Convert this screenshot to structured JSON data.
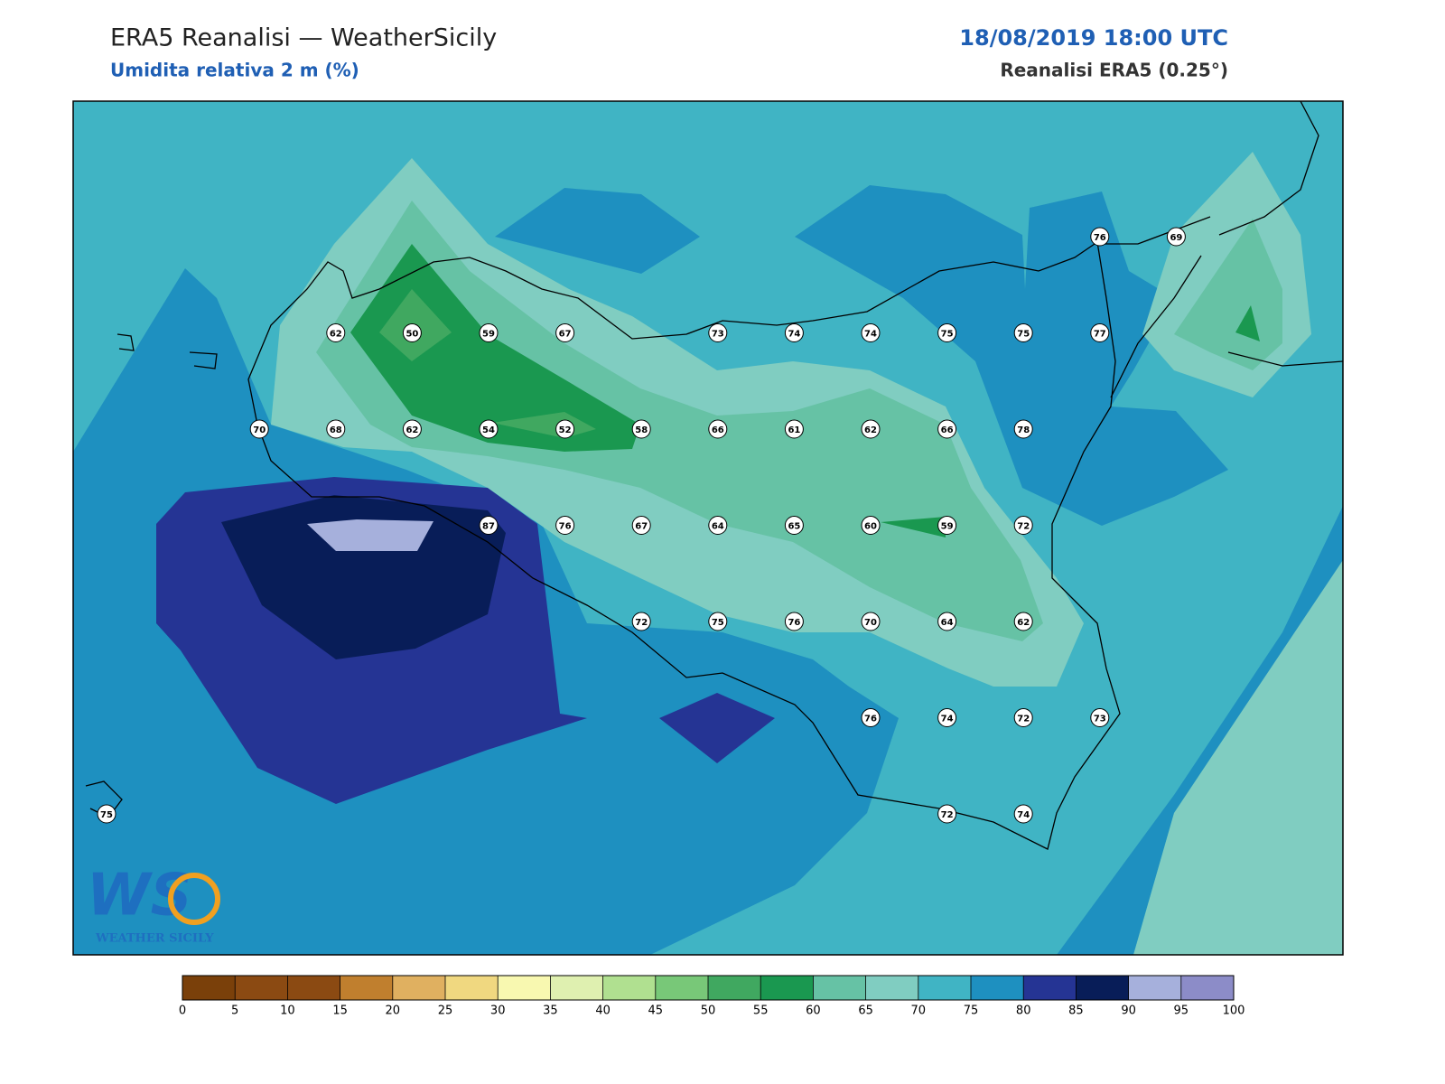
{
  "header": {
    "title": "ERA5 Reanalisi — WeatherSicily",
    "subtitle": "Umidita relativa 2 m (%)",
    "datetime": "18/08/2019 18:00 UTC",
    "source": "Reanalisi ERA5 (0.25°)"
  },
  "stations": [
    76,
    69,
    62,
    50,
    59,
    67,
    73,
    74,
    74,
    75,
    75,
    77,
    70,
    68,
    62,
    54,
    52,
    58,
    66,
    61,
    62,
    66,
    78,
    87,
    76,
    67,
    64,
    65,
    60,
    59,
    72,
    72,
    75,
    76,
    70,
    64,
    62,
    76,
    74,
    72,
    73,
    75,
    72,
    74
  ],
  "colorbar": {
    "ticks": [
      0,
      5,
      10,
      15,
      20,
      25,
      30,
      35,
      40,
      45,
      50,
      55,
      60,
      65,
      70,
      75,
      80,
      85,
      90,
      95,
      100
    ],
    "colors": [
      "#7a400a",
      "#8b4a12",
      "#8b4a12",
      "#c07f2e",
      "#e0b060",
      "#f0d880",
      "#f8f8b0",
      "#dff0b0",
      "#b0e090",
      "#78c878",
      "#40a860",
      "#1a9850",
      "#66c2a5",
      "#80cdc1",
      "#40b4c4",
      "#1e90c0",
      "#253494",
      "#081d58",
      "#a6b0dc",
      "#8c8cc8"
    ]
  },
  "logo": {
    "letters": "WS",
    "text": "WEATHER SICILY"
  }
}
